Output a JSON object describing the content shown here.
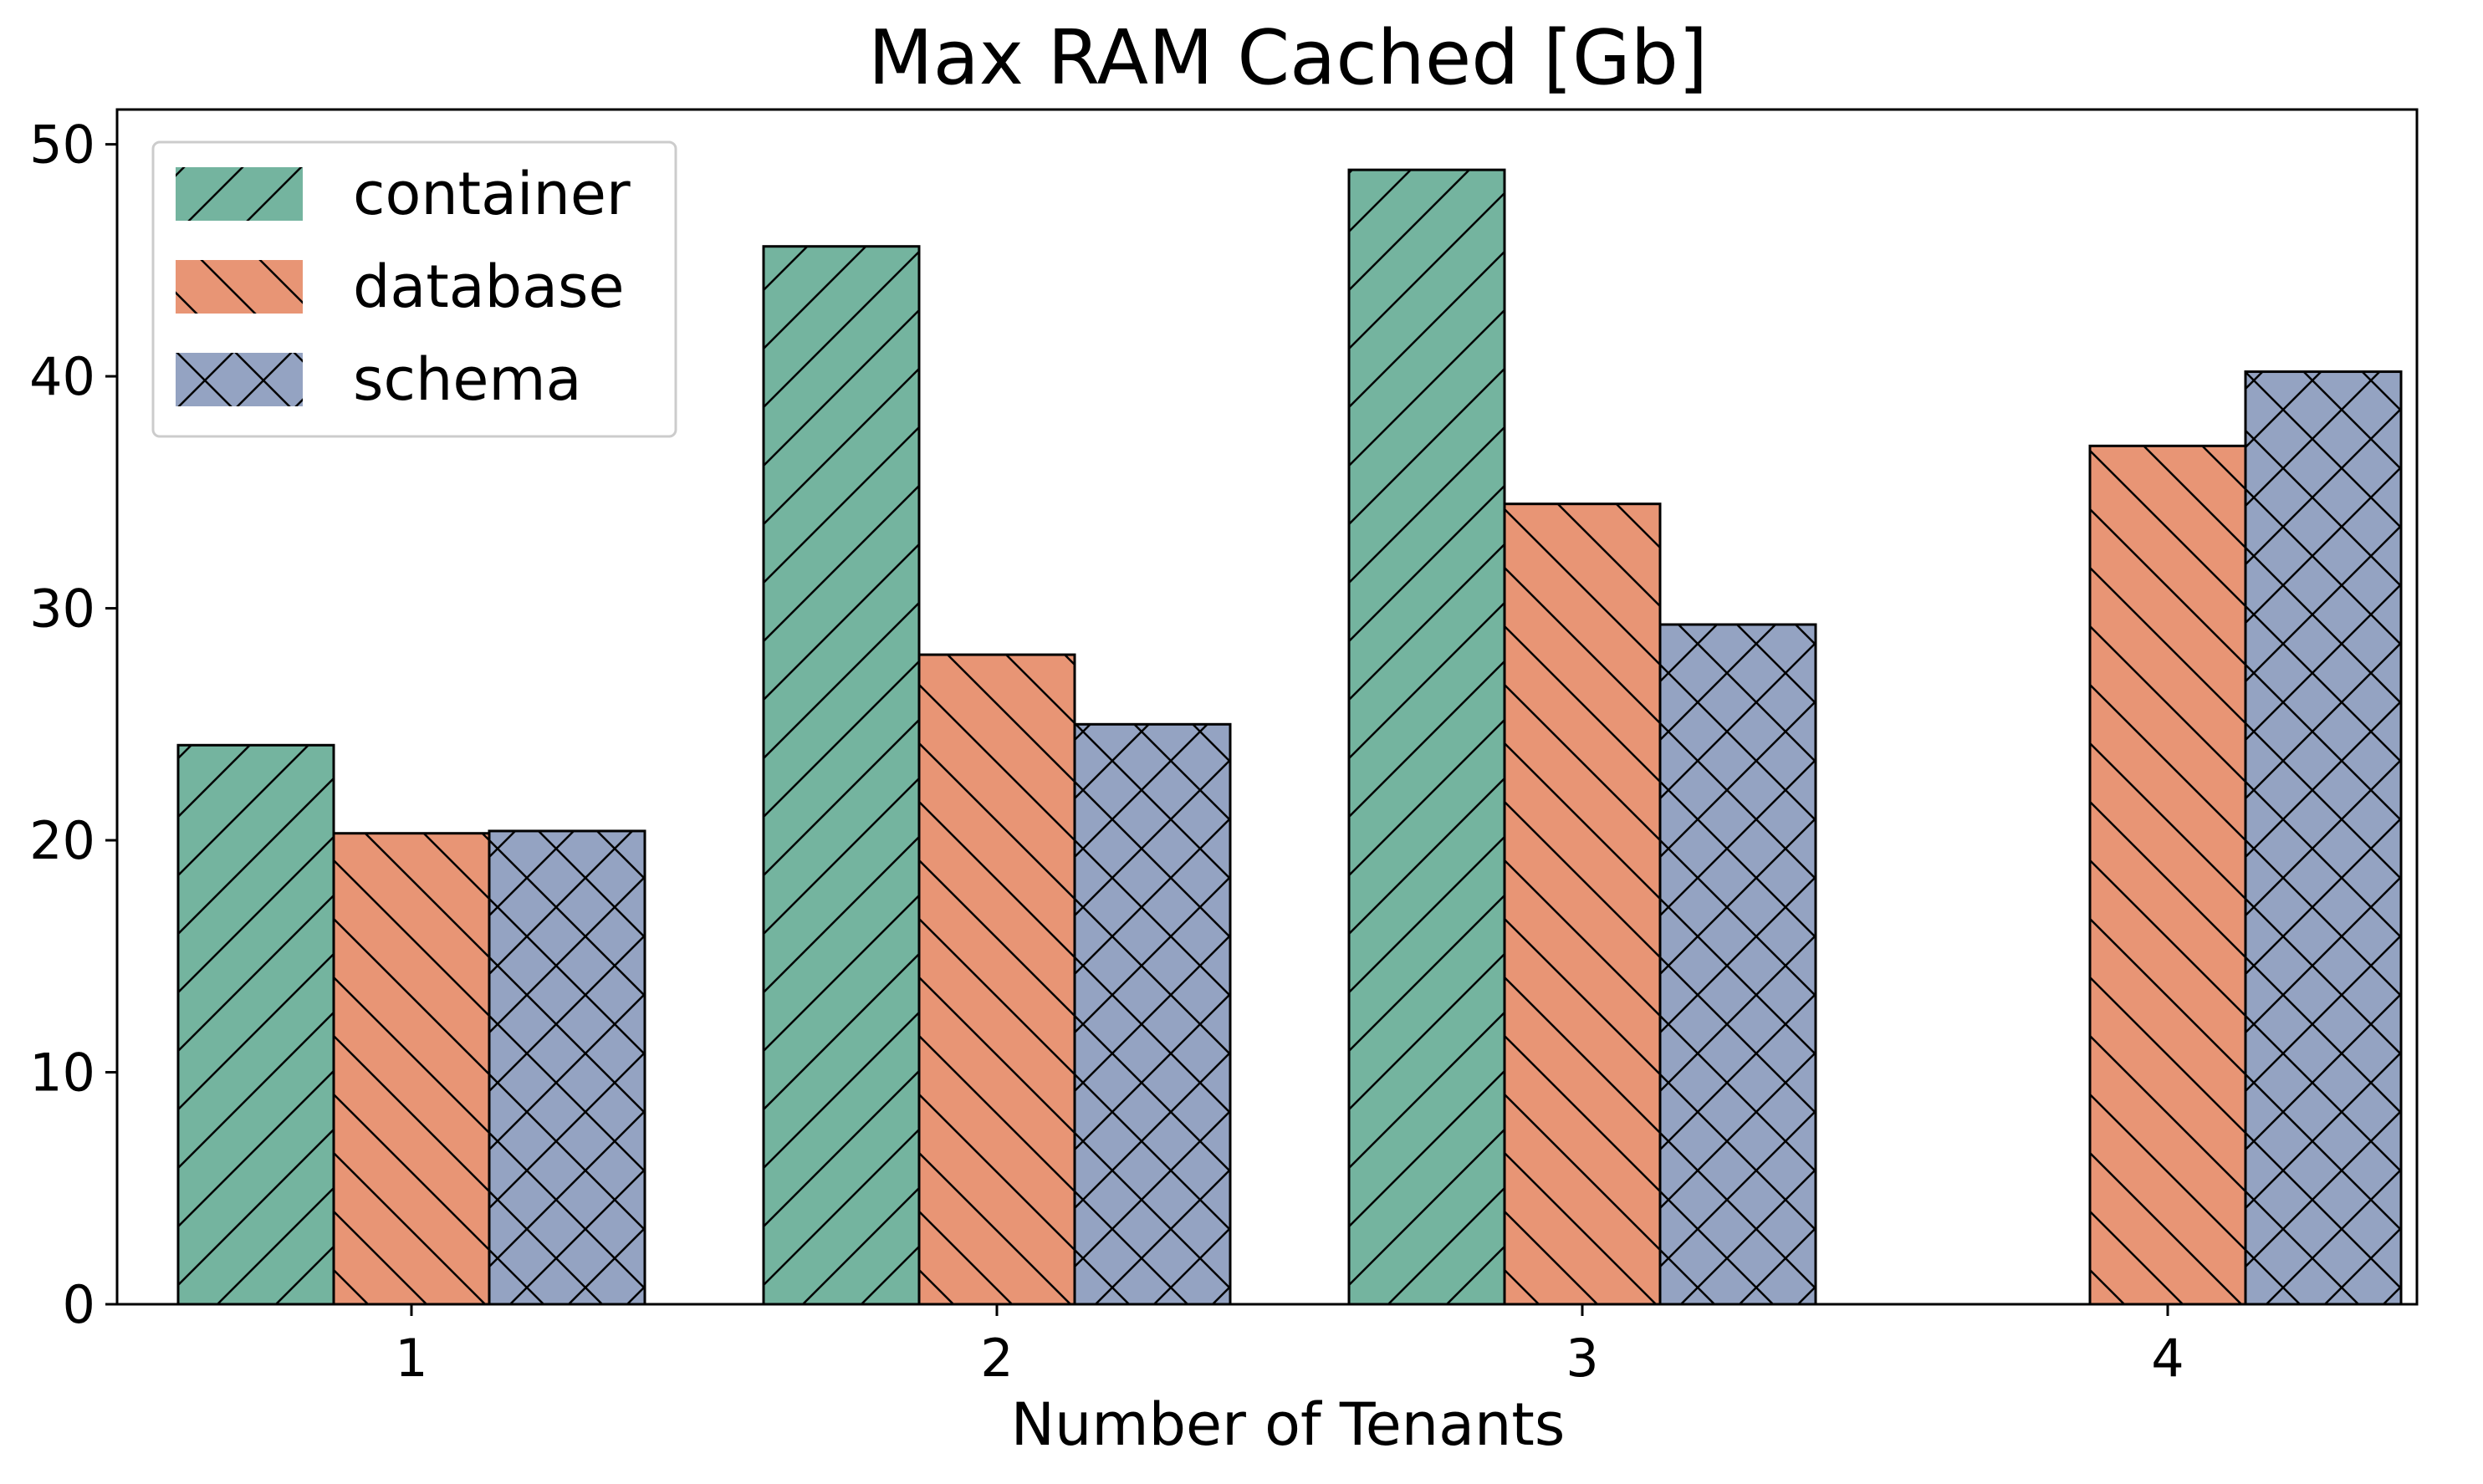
{
  "chart_data": {
    "type": "bar",
    "title": "Max RAM Cached [Gb]",
    "xlabel": "Number of Tenants",
    "ylabel": "",
    "categories": [
      "1",
      "2",
      "3",
      "4"
    ],
    "ylim": [
      0,
      51.5
    ],
    "yticks": [
      "0",
      "10",
      "20",
      "30",
      "40",
      "50"
    ],
    "grid": false,
    "legend_position": "top-left",
    "series": [
      {
        "name": "container",
        "color": "#74b49f",
        "hatch": "forward-diagonal",
        "values": [
          24.1,
          45.6,
          48.9,
          null
        ]
      },
      {
        "name": "database",
        "color": "#e89575",
        "hatch": "back-diagonal",
        "values": [
          20.3,
          28.0,
          34.5,
          37.0
        ]
      },
      {
        "name": "schema",
        "color": "#94a3c2",
        "hatch": "cross-hatch",
        "values": [
          20.4,
          25.0,
          29.3,
          40.2
        ]
      }
    ]
  }
}
